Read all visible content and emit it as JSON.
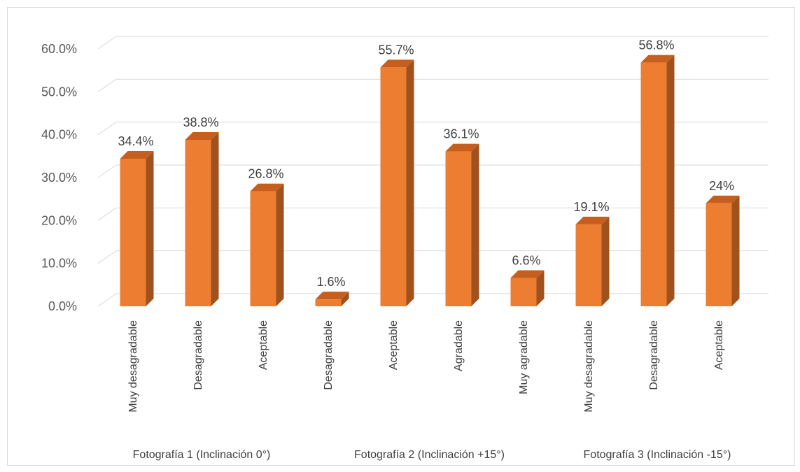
{
  "chart_data": {
    "type": "bar",
    "groups": [
      {
        "label": "Fotografía 1 (Inclinación 0°)",
        "items": [
          {
            "category": "Muy desagradable",
            "value": 34.4,
            "label": "34.4%"
          },
          {
            "category": "Desagradable",
            "value": 38.8,
            "label": "38.8%"
          },
          {
            "category": "Aceptable",
            "value": 26.8,
            "label": "26.8%"
          }
        ]
      },
      {
        "label": "Fotografía 2 (Inclinación +15°)",
        "items": [
          {
            "category": "Desagradable",
            "value": 1.6,
            "label": "1.6%"
          },
          {
            "category": "Aceptable",
            "value": 55.7,
            "label": "55.7%"
          },
          {
            "category": "Agradable",
            "value": 36.1,
            "label": "36.1%"
          },
          {
            "category": "Muy agradable",
            "value": 6.6,
            "label": "6.6%"
          }
        ]
      },
      {
        "label": "Fotografía 3 (Inclinación -15°)",
        "items": [
          {
            "category": "Muy desagradable",
            "value": 19.1,
            "label": "19.1%"
          },
          {
            "category": "Desagradable",
            "value": 56.8,
            "label": "56.8%"
          },
          {
            "category": "Aceptable",
            "value": 24,
            "label": "24%"
          }
        ]
      }
    ],
    "yticks": [
      "0.0%",
      "10.0%",
      "20.0%",
      "30.0%",
      "40.0%",
      "50.0%",
      "60.0%"
    ],
    "ylim": [
      0,
      60
    ],
    "grid": true,
    "legend": "none",
    "style": "3d-column",
    "colors": {
      "bar_front": "#ED7D31",
      "bar_side": "#A0521E",
      "bar_top": "#C65F1E",
      "grid": "#d9d9d9"
    }
  }
}
